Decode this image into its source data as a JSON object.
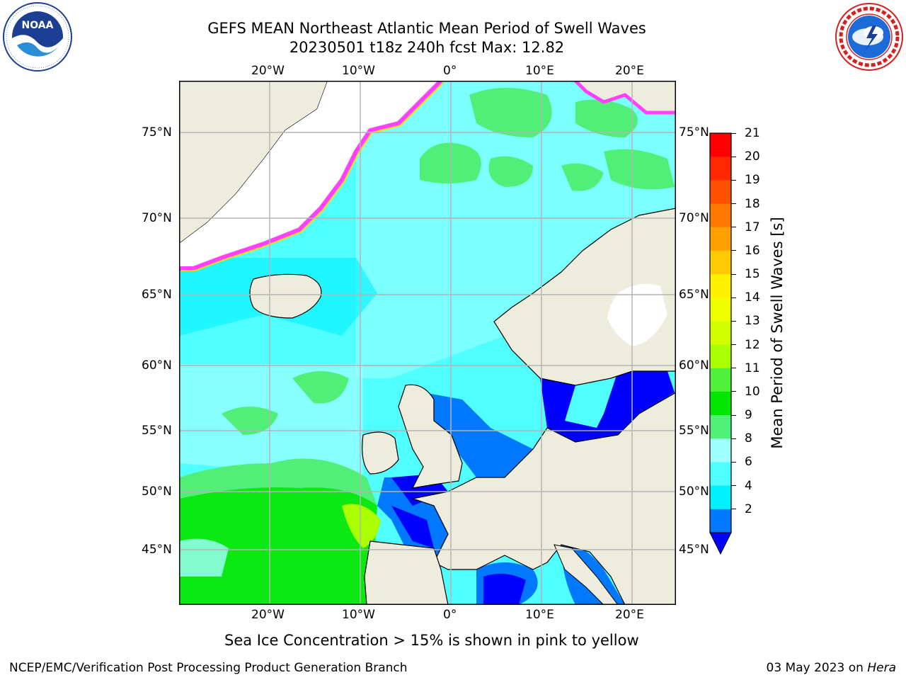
{
  "title": {
    "line1": "GEFS MEAN Northeast Atlantic Mean Period of Swell Waves",
    "line2": "20230501 t18z 240h fcst   Max: 12.82"
  },
  "logos": {
    "left": {
      "name": "noaa-logo",
      "text": "NOAA",
      "ring_text": "NATIONAL OCEANIC AND ATMOSPHERIC ADMINISTRATION · U.S. DEPARTMENT OF COMMERCE"
    },
    "right": {
      "name": "nws-logo",
      "ring_text": "NATIONAL WEATHER SERVICE"
    }
  },
  "map": {
    "projection": "lat-lon",
    "lon_ticks": [
      "20°W",
      "10°W",
      "0°",
      "10°E",
      "20°E"
    ],
    "lat_ticks": [
      "75°N",
      "70°N",
      "65°N",
      "60°N",
      "55°N",
      "50°N",
      "45°N"
    ],
    "grid": true,
    "colors": {
      "land": "#eeecdc",
      "coast": "#000000",
      "grid": "#b4b4b4",
      "ice_pink": "#ff40ff",
      "ice_yellow": "#ffd700"
    }
  },
  "colorbar": {
    "label": "Mean Period of Swell Waves [s]",
    "ticks": [
      "21",
      "20",
      "19",
      "18",
      "17",
      "16",
      "15",
      "14",
      "13",
      "12",
      "11",
      "10",
      "9",
      "8",
      "6",
      "4",
      "2"
    ],
    "colors": [
      "#ff0000",
      "#ff2800",
      "#ff5000",
      "#ff7800",
      "#ffa000",
      "#ffc800",
      "#fff000",
      "#f0ff00",
      "#d2ff00",
      "#aaff00",
      "#50f03c",
      "#00e600",
      "#50f078",
      "#a0ffff",
      "#50ffff",
      "#00f0ff",
      "#0078ff"
    ],
    "underflow_color": "#0000ff"
  },
  "note": "Sea Ice Concentration > 15% is shown in pink to yellow",
  "footer": {
    "left": "NCEP/EMC/Verification Post Processing Product Generation Branch",
    "right_date": "03 May 2023 on",
    "right_host": "Hera"
  }
}
